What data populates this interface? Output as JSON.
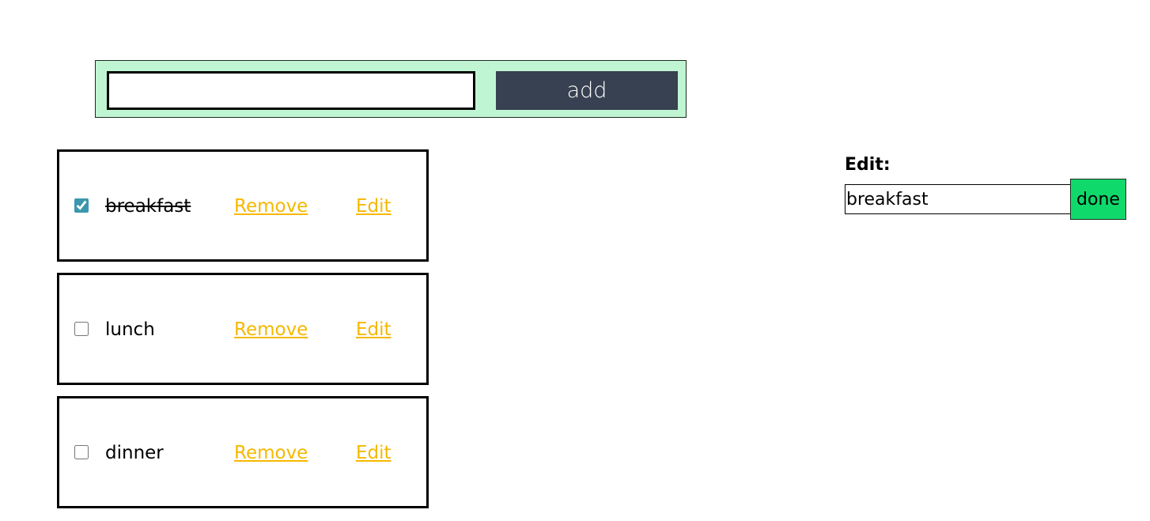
{
  "add_bar": {
    "input_value": "",
    "input_placeholder": "",
    "button_label": "add",
    "background_color": "#bff5d2",
    "button_color": "#374151"
  },
  "todos": [
    {
      "label": "breakfast",
      "completed": true,
      "remove_label": "Remove",
      "edit_label": "Edit"
    },
    {
      "label": "lunch",
      "completed": false,
      "remove_label": "Remove",
      "edit_label": "Edit"
    },
    {
      "label": "dinner",
      "completed": false,
      "remove_label": "Remove",
      "edit_label": "Edit"
    }
  ],
  "edit_panel": {
    "title": "Edit:",
    "input_value": "breakfast",
    "done_label": "done",
    "done_color": "#10d96b"
  },
  "colors": {
    "link": "#f5b800",
    "checkbox_accent": "#3b97ad"
  }
}
